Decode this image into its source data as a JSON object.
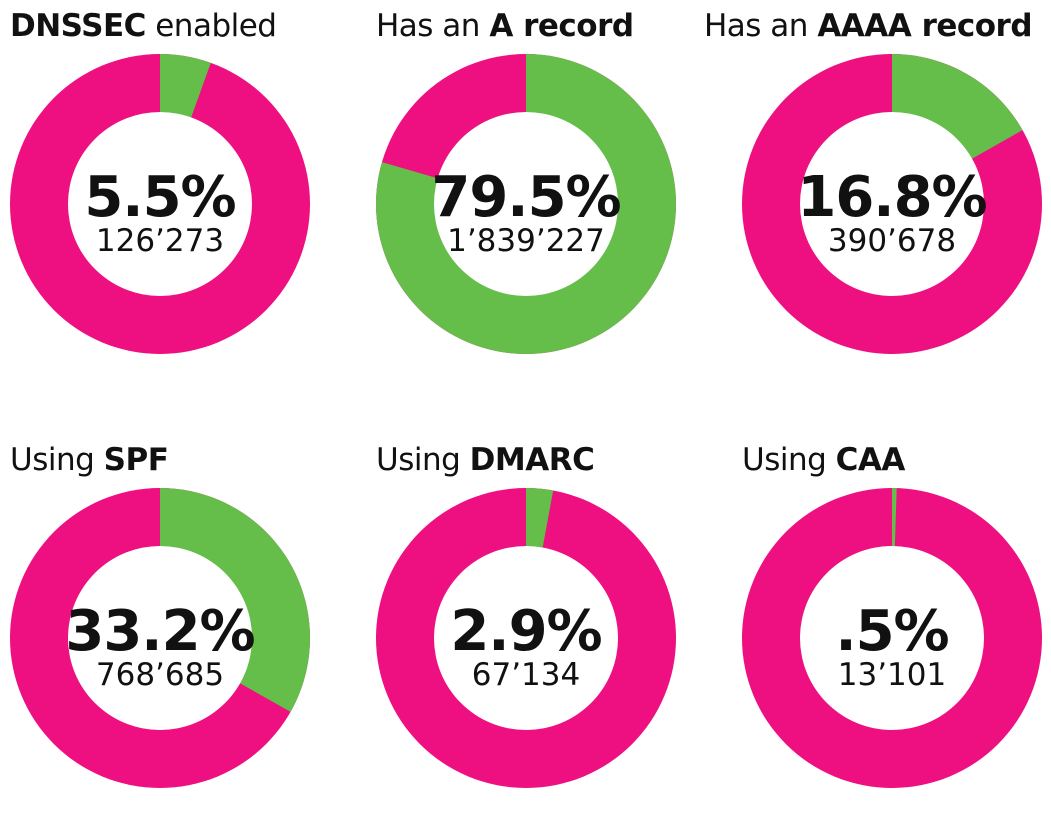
{
  "colors": {
    "yes": "#65bd4a",
    "no": "#ee0f81",
    "hole": "#ffffff"
  },
  "chart_data": [
    {
      "type": "pie",
      "title_pre": "",
      "title_bold": "DNSSEC",
      "title_post": " enabled",
      "value": 5.5,
      "label": "5.5%",
      "count": "126’273"
    },
    {
      "type": "pie",
      "title_pre": "Has an ",
      "title_bold": "A record",
      "title_post": "",
      "value": 79.5,
      "label": "79.5%",
      "count": "1’839’227"
    },
    {
      "type": "pie",
      "title_pre": "Has an ",
      "title_bold": "AAAA record",
      "title_post": "",
      "value": 16.8,
      "label": "16.8%",
      "count": "390’678"
    },
    {
      "type": "pie",
      "title_pre": "Using ",
      "title_bold": "SPF",
      "title_post": "",
      "value": 33.2,
      "label": "33.2%",
      "count": "768’685"
    },
    {
      "type": "pie",
      "title_pre": "Using ",
      "title_bold": "DMARC",
      "title_post": "",
      "value": 2.9,
      "label": "2.9%",
      "count": "67’134"
    },
    {
      "type": "pie",
      "title_pre": "Using ",
      "title_bold": "CAA",
      "title_post": "",
      "value": 0.5,
      "label": ".5%",
      "count": "13’101"
    }
  ]
}
